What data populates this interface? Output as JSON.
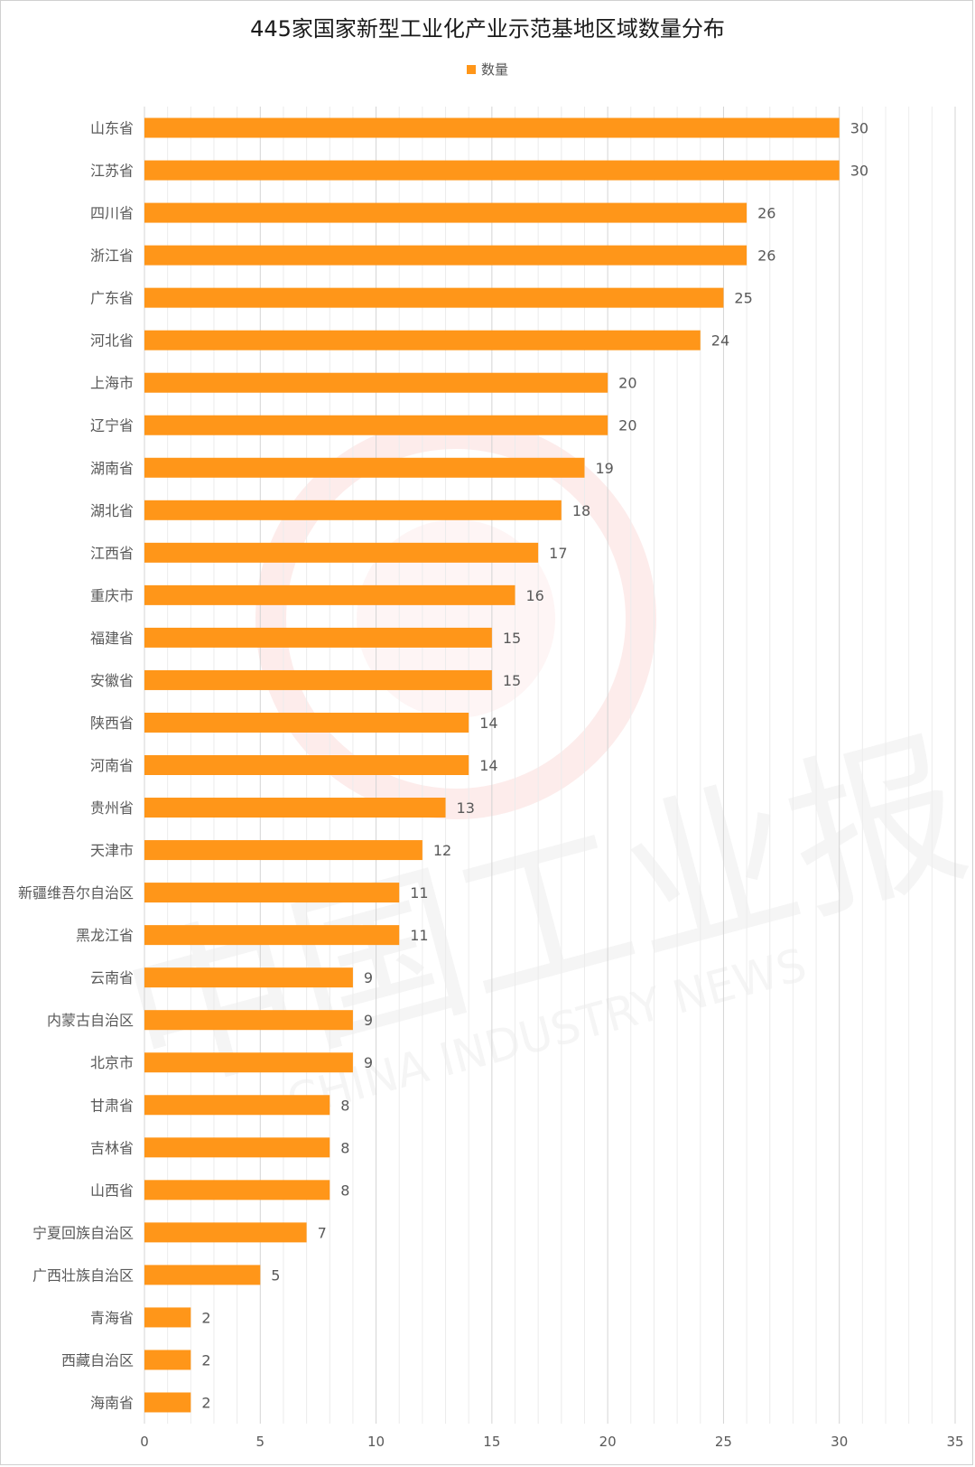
{
  "chart_data": {
    "type": "bar",
    "orientation": "horizontal",
    "title": "445家国家新型工业化产业示范基地区域数量分布",
    "legend": {
      "position": "top",
      "entries": [
        "数量"
      ]
    },
    "series": [
      {
        "name": "数量",
        "color": "#FF9619",
        "values": [
          30,
          30,
          26,
          26,
          25,
          24,
          20,
          20,
          19,
          18,
          17,
          16,
          15,
          15,
          14,
          14,
          13,
          12,
          11,
          11,
          9,
          9,
          9,
          8,
          8,
          8,
          7,
          5,
          2,
          2,
          2
        ]
      }
    ],
    "categories": [
      "山东省",
      "江苏省",
      "四川省",
      "浙江省",
      "广东省",
      "河北省",
      "上海市",
      "辽宁省",
      "湖南省",
      "湖北省",
      "江西省",
      "重庆市",
      "福建省",
      "安徽省",
      "陕西省",
      "河南省",
      "贵州省",
      "天津市",
      "新疆维吾尔自治区",
      "黑龙江省",
      "云南省",
      "内蒙古自治区",
      "北京市",
      "甘肃省",
      "吉林省",
      "山西省",
      "宁夏回族自治区",
      "广西壮族自治区",
      "青海省",
      "西藏自治区",
      "海南省"
    ],
    "xlim": [
      0,
      35
    ],
    "xticks": [
      0,
      5,
      10,
      15,
      20,
      25,
      30,
      35
    ],
    "data_labels": true,
    "grid": true
  },
  "watermark": {
    "text_cn": "中国工业报",
    "text_en": "CHINA INDUSTRY NEWS"
  }
}
